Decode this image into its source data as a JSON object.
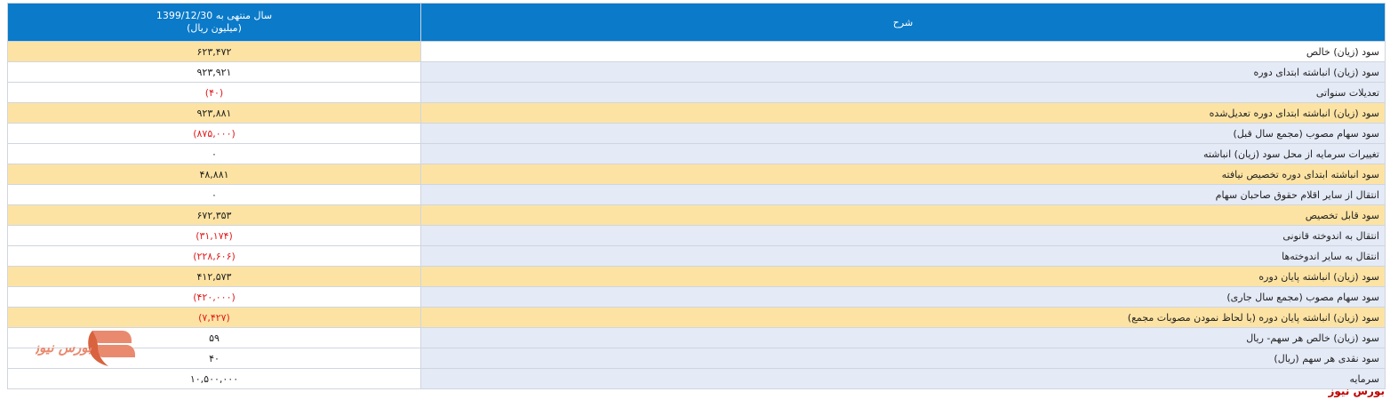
{
  "table": {
    "header": {
      "description": "شرح",
      "period_line1": "سال منتهی به 1399/12/30",
      "period_line2": "(میلیون ریال)"
    },
    "rows": [
      {
        "label": "سود (زیان) خالص",
        "value": "۶۲۳,۴۷۲",
        "negative": false,
        "highlight": true
      },
      {
        "label": "سود (زیان) انباشته ابتدای دوره",
        "value": "۹۲۳,۹۲۱",
        "negative": false,
        "highlight": false
      },
      {
        "label": "تعدیلات سنواتی",
        "value": "(۴۰)",
        "negative": true,
        "highlight": false
      },
      {
        "label": "سود (زیان) انباشته ابتدای دوره تعدیل‌شده",
        "value": "۹۲۳,۸۸۱",
        "negative": false,
        "highlight": true
      },
      {
        "label": "سود سهام مصوب (مجمع سال قبل)",
        "value": "(۸۷۵,۰۰۰)",
        "negative": true,
        "highlight": false
      },
      {
        "label": "تغییرات سرمایه از محل سود (زیان) انباشته",
        "value": "۰",
        "negative": false,
        "highlight": false
      },
      {
        "label": "سود انباشته ابتدای دوره تخصیص نیافته",
        "value": "۴۸,۸۸۱",
        "negative": false,
        "highlight": true
      },
      {
        "label": "انتقال از سایر اقلام حقوق صاحبان سهام",
        "value": "۰",
        "negative": false,
        "highlight": false
      },
      {
        "label": "سود قابل تخصیص",
        "value": "۶۷۲,۳۵۳",
        "negative": false,
        "highlight": true
      },
      {
        "label": "انتقال به اندوخته قانونی",
        "value": "(۳۱,۱۷۴)",
        "negative": true,
        "highlight": false
      },
      {
        "label": "انتقال به سایر اندوخته‌ها",
        "value": "(۲۲۸,۶۰۶)",
        "negative": true,
        "highlight": false
      },
      {
        "label": "سود (زیان) انباشته پایان دوره",
        "value": "۴۱۲,۵۷۳",
        "negative": false,
        "highlight": true
      },
      {
        "label": "سود سهام مصوب (مجمع سال جاری)",
        "value": "(۴۲۰,۰۰۰)",
        "negative": true,
        "highlight": false
      },
      {
        "label": "سود (زیان) انباشته پایان دوره (با لحاظ نمودن مصوبات مجمع)",
        "value": "(۷,۴۲۷)",
        "negative": true,
        "highlight": true
      },
      {
        "label": "سود (زیان) خالص هر سهم- ریال",
        "value": "۵۹",
        "negative": false,
        "highlight": false
      },
      {
        "label": "سود نقدی هر سهم (ریال)",
        "value": "۴۰",
        "negative": false,
        "highlight": false
      },
      {
        "label": "سرمایه",
        "value": "۱۰,۵۰۰,۰۰۰",
        "negative": false,
        "highlight": false
      }
    ]
  },
  "branding": {
    "watermark_text": "بورس نیوز",
    "footer_text": "بورس نیوز"
  },
  "colors": {
    "header_bg": "#0a7ac9",
    "highlight_row": "#fde3a3",
    "description_cell": "#e4eaf6",
    "negative_value": "#e21b1b",
    "brand": "#c00000"
  }
}
